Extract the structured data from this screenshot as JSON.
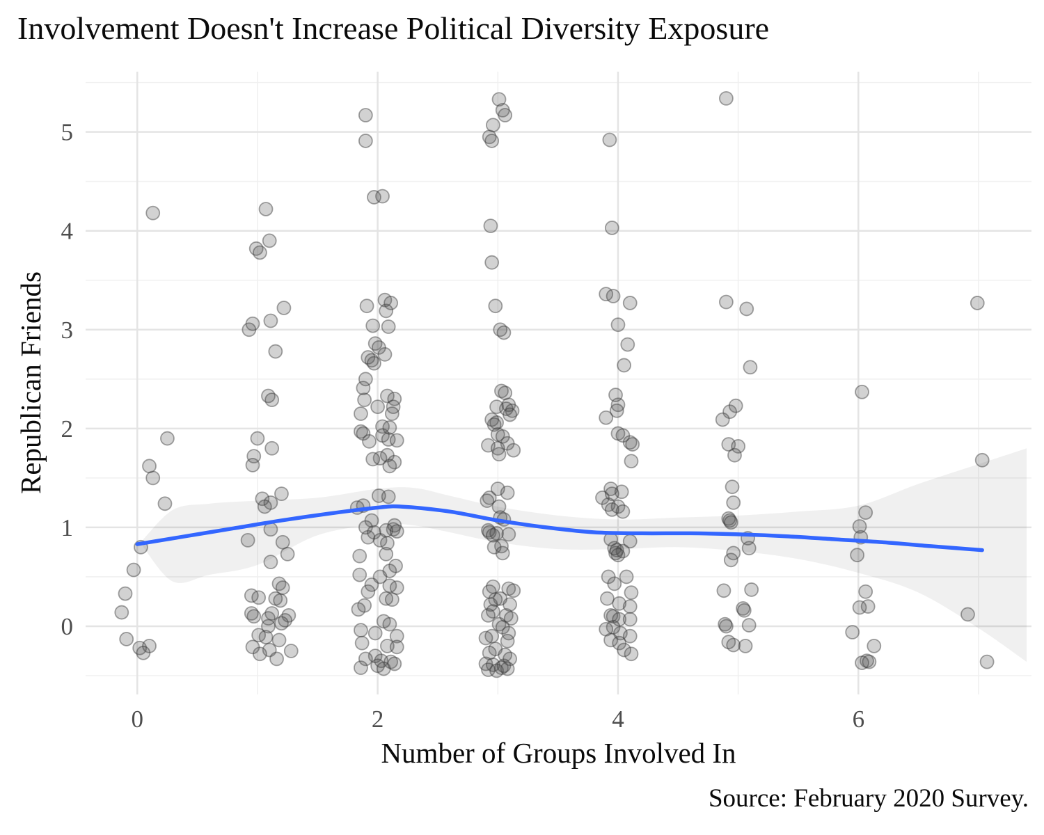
{
  "title": "Involvement Doesn't Increase Political Diversity Exposure",
  "caption": "Source: February 2020 Survey.",
  "chart_data": {
    "type": "scatter",
    "title": "Involvement Doesn't Increase Political Diversity Exposure",
    "xlabel": "Number of Groups Involved In",
    "ylabel": "Republican Friends",
    "caption": "Source: February 2020 Survey.",
    "xlim": [
      -0.43,
      7.44
    ],
    "ylim": [
      -0.69,
      5.61
    ],
    "x_ticks": [
      0,
      2,
      4,
      6
    ],
    "x_minor": [
      1,
      3,
      5,
      7
    ],
    "y_ticks": [
      0,
      1,
      2,
      3,
      4,
      5
    ],
    "y_minor": [
      -0.5,
      0.5,
      1.5,
      2.5,
      3.5,
      4.5,
      5.5
    ],
    "grid": true,
    "legend": "none",
    "colors": {
      "smooth_line": "#3366FF",
      "band": "rgba(0,0,0,0.06)",
      "point_fill": "rgba(75,75,75,0.25)",
      "point_stroke": "rgba(55,55,55,0.45)",
      "grid_major": "#E4E4E4",
      "grid_minor": "#F0F0F0",
      "tick_label": "#4D4D4D"
    },
    "smooth_line_points": [
      [
        0.0,
        0.83
      ],
      [
        0.4,
        0.91
      ],
      [
        0.8,
        0.99
      ],
      [
        1.2,
        1.07
      ],
      [
        1.6,
        1.14
      ],
      [
        2.0,
        1.2
      ],
      [
        2.2,
        1.21
      ],
      [
        2.6,
        1.16
      ],
      [
        3.0,
        1.07
      ],
      [
        3.4,
        1.0
      ],
      [
        3.8,
        0.95
      ],
      [
        4.2,
        0.94
      ],
      [
        4.6,
        0.94
      ],
      [
        5.0,
        0.93
      ],
      [
        5.4,
        0.91
      ],
      [
        5.8,
        0.88
      ],
      [
        6.2,
        0.85
      ],
      [
        6.6,
        0.81
      ],
      [
        7.03,
        0.77
      ]
    ],
    "confidence_band": [
      [
        0.05,
        0.8,
        0.88
      ],
      [
        0.3,
        0.45,
        1.18
      ],
      [
        0.6,
        0.52,
        1.24
      ],
      [
        1.0,
        0.62,
        1.27
      ],
      [
        1.5,
        0.92,
        1.3
      ],
      [
        2.0,
        1.03,
        1.39
      ],
      [
        2.3,
        1.02,
        1.4
      ],
      [
        2.6,
        0.95,
        1.32
      ],
      [
        3.0,
        0.85,
        1.21
      ],
      [
        3.5,
        0.78,
        1.12
      ],
      [
        4.0,
        0.78,
        1.08
      ],
      [
        4.5,
        0.8,
        1.1
      ],
      [
        5.0,
        0.76,
        1.12
      ],
      [
        5.5,
        0.68,
        1.16
      ],
      [
        6.0,
        0.54,
        1.22
      ],
      [
        6.5,
        0.34,
        1.44
      ],
      [
        7.0,
        -0.02,
        1.64
      ],
      [
        7.4,
        -0.36,
        1.8
      ]
    ],
    "points": [
      [
        0.13,
        4.18
      ],
      [
        0.25,
        1.9
      ],
      [
        0.1,
        1.62
      ],
      [
        0.13,
        1.5
      ],
      [
        0.23,
        1.24
      ],
      [
        0.03,
        0.8
      ],
      [
        -0.03,
        0.57
      ],
      [
        -0.1,
        0.33
      ],
      [
        -0.13,
        0.14
      ],
      [
        -0.09,
        -0.13
      ],
      [
        0.02,
        -0.22
      ],
      [
        0.1,
        -0.2
      ],
      [
        0.05,
        -0.27
      ],
      [
        1.07,
        4.22
      ],
      [
        1.1,
        3.9
      ],
      [
        0.99,
        3.82
      ],
      [
        1.02,
        3.78
      ],
      [
        1.22,
        3.22
      ],
      [
        1.11,
        3.09
      ],
      [
        0.96,
        3.06
      ],
      [
        0.93,
        3.0
      ],
      [
        1.15,
        2.78
      ],
      [
        1.09,
        2.33
      ],
      [
        1.12,
        2.29
      ],
      [
        1.0,
        1.9
      ],
      [
        1.12,
        1.8
      ],
      [
        0.97,
        1.72
      ],
      [
        0.96,
        1.63
      ],
      [
        1.2,
        1.34
      ],
      [
        1.04,
        1.29
      ],
      [
        1.11,
        1.25
      ],
      [
        1.06,
        1.21
      ],
      [
        1.11,
        0.98
      ],
      [
        0.92,
        0.87
      ],
      [
        1.21,
        0.85
      ],
      [
        1.25,
        0.73
      ],
      [
        1.11,
        0.65
      ],
      [
        1.18,
        0.43
      ],
      [
        1.21,
        0.39
      ],
      [
        0.95,
        0.31
      ],
      [
        1.01,
        0.29
      ],
      [
        1.15,
        0.28
      ],
      [
        1.19,
        0.26
      ],
      [
        0.95,
        0.13
      ],
      [
        1.12,
        0.13
      ],
      [
        1.26,
        0.11
      ],
      [
        0.97,
        0.1
      ],
      [
        1.09,
        0.08
      ],
      [
        1.23,
        0.06
      ],
      [
        1.2,
        0.03
      ],
      [
        1.09,
        0.0
      ],
      [
        1.01,
        -0.09
      ],
      [
        1.07,
        -0.11
      ],
      [
        1.18,
        -0.14
      ],
      [
        0.96,
        -0.21
      ],
      [
        1.1,
        -0.24
      ],
      [
        1.28,
        -0.25
      ],
      [
        1.02,
        -0.28
      ],
      [
        1.16,
        -0.33
      ],
      [
        1.9,
        5.17
      ],
      [
        1.9,
        4.91
      ],
      [
        1.97,
        4.34
      ],
      [
        2.04,
        4.35
      ],
      [
        1.91,
        3.24
      ],
      [
        2.06,
        3.3
      ],
      [
        2.11,
        3.27
      ],
      [
        2.07,
        3.19
      ],
      [
        1.96,
        3.04
      ],
      [
        2.09,
        3.03
      ],
      [
        1.98,
        2.86
      ],
      [
        2.01,
        2.82
      ],
      [
        2.06,
        2.75
      ],
      [
        1.92,
        2.72
      ],
      [
        1.95,
        2.69
      ],
      [
        1.97,
        2.66
      ],
      [
        1.9,
        2.5
      ],
      [
        1.88,
        2.41
      ],
      [
        2.08,
        2.33
      ],
      [
        2.14,
        2.3
      ],
      [
        1.89,
        2.29
      ],
      [
        2.0,
        2.22
      ],
      [
        2.13,
        2.22
      ],
      [
        1.86,
        2.15
      ],
      [
        2.12,
        2.15
      ],
      [
        2.04,
        2.02
      ],
      [
        2.1,
        2.01
      ],
      [
        1.86,
        1.97
      ],
      [
        1.88,
        1.95
      ],
      [
        2.04,
        1.93
      ],
      [
        2.09,
        1.89
      ],
      [
        1.93,
        1.87
      ],
      [
        2.16,
        1.88
      ],
      [
        2.08,
        1.73
      ],
      [
        2.02,
        1.7
      ],
      [
        1.96,
        1.69
      ],
      [
        2.14,
        1.66
      ],
      [
        2.1,
        1.62
      ],
      [
        2.01,
        1.32
      ],
      [
        2.09,
        1.31
      ],
      [
        1.88,
        1.22
      ],
      [
        1.83,
        1.2
      ],
      [
        1.95,
        1.07
      ],
      [
        1.9,
        1.0
      ],
      [
        2.13,
        0.98
      ],
      [
        2.14,
        1.02
      ],
      [
        2.07,
        0.97
      ],
      [
        2.16,
        0.96
      ],
      [
        1.97,
        0.95
      ],
      [
        1.92,
        0.9
      ],
      [
        2.02,
        0.87
      ],
      [
        2.08,
        0.84
      ],
      [
        1.85,
        0.71
      ],
      [
        2.07,
        0.73
      ],
      [
        2.15,
        0.61
      ],
      [
        2.1,
        0.56
      ],
      [
        1.85,
        0.52
      ],
      [
        2.02,
        0.5
      ],
      [
        1.95,
        0.42
      ],
      [
        2.1,
        0.41
      ],
      [
        2.16,
        0.39
      ],
      [
        1.92,
        0.35
      ],
      [
        2.07,
        0.28
      ],
      [
        2.12,
        0.27
      ],
      [
        1.89,
        0.21
      ],
      [
        1.84,
        0.17
      ],
      [
        2.05,
        0.05
      ],
      [
        2.1,
        0.02
      ],
      [
        1.86,
        -0.04
      ],
      [
        1.98,
        -0.07
      ],
      [
        2.16,
        -0.1
      ],
      [
        1.87,
        -0.17
      ],
      [
        2.08,
        -0.2
      ],
      [
        2.16,
        -0.21
      ],
      [
        1.98,
        -0.3
      ],
      [
        2.03,
        -0.35
      ],
      [
        2.11,
        -0.36
      ],
      [
        1.9,
        -0.33
      ],
      [
        2.14,
        -0.38
      ],
      [
        2.0,
        -0.4
      ],
      [
        1.86,
        -0.42
      ],
      [
        2.05,
        -0.43
      ],
      [
        3.01,
        5.33
      ],
      [
        3.04,
        5.22
      ],
      [
        3.06,
        5.17
      ],
      [
        2.96,
        5.07
      ],
      [
        2.93,
        4.95
      ],
      [
        2.95,
        4.91
      ],
      [
        2.94,
        4.05
      ],
      [
        2.95,
        3.68
      ],
      [
        2.98,
        3.24
      ],
      [
        3.02,
        3.0
      ],
      [
        3.05,
        2.97
      ],
      [
        3.03,
        2.38
      ],
      [
        3.06,
        2.36
      ],
      [
        3.09,
        2.24
      ],
      [
        2.99,
        2.22
      ],
      [
        3.07,
        2.2
      ],
      [
        3.12,
        2.18
      ],
      [
        3.1,
        2.14
      ],
      [
        2.95,
        2.09
      ],
      [
        2.99,
        2.06
      ],
      [
        2.97,
        2.04
      ],
      [
        3.0,
        1.94
      ],
      [
        3.04,
        1.92
      ],
      [
        3.08,
        1.85
      ],
      [
        2.92,
        1.83
      ],
      [
        3.0,
        1.8
      ],
      [
        3.13,
        1.78
      ],
      [
        3.01,
        1.74
      ],
      [
        3.0,
        1.39
      ],
      [
        3.08,
        1.35
      ],
      [
        2.93,
        1.3
      ],
      [
        2.91,
        1.27
      ],
      [
        3.01,
        1.21
      ],
      [
        3.02,
        1.1
      ],
      [
        3.05,
        1.08
      ],
      [
        2.92,
        0.97
      ],
      [
        2.93,
        0.95
      ],
      [
        2.99,
        0.94
      ],
      [
        3.09,
        0.93
      ],
      [
        2.96,
        0.92
      ],
      [
        3.03,
        0.81
      ],
      [
        2.97,
        0.8
      ],
      [
        3.04,
        0.74
      ],
      [
        2.96,
        0.4
      ],
      [
        3.09,
        0.38
      ],
      [
        2.93,
        0.35
      ],
      [
        3.13,
        0.36
      ],
      [
        3.02,
        0.28
      ],
      [
        2.98,
        0.27
      ],
      [
        2.94,
        0.22
      ],
      [
        3.1,
        0.22
      ],
      [
        2.96,
        0.15
      ],
      [
        2.92,
        0.11
      ],
      [
        3.07,
        0.11
      ],
      [
        3.11,
        0.08
      ],
      [
        3.01,
        0.02
      ],
      [
        3.04,
        -0.01
      ],
      [
        3.09,
        -0.07
      ],
      [
        2.95,
        -0.1
      ],
      [
        2.9,
        -0.12
      ],
      [
        3.08,
        -0.15
      ],
      [
        2.98,
        -0.23
      ],
      [
        2.93,
        -0.27
      ],
      [
        3.06,
        -0.29
      ],
      [
        3.1,
        -0.33
      ],
      [
        2.9,
        -0.38
      ],
      [
        2.96,
        -0.39
      ],
      [
        3.03,
        -0.42
      ],
      [
        3.08,
        -0.43
      ],
      [
        2.92,
        -0.44
      ],
      [
        2.99,
        -0.45
      ],
      [
        3.05,
        -0.4
      ],
      [
        3.93,
        4.92
      ],
      [
        3.95,
        4.03
      ],
      [
        3.9,
        3.36
      ],
      [
        3.96,
        3.34
      ],
      [
        4.1,
        3.27
      ],
      [
        4.0,
        3.05
      ],
      [
        4.08,
        2.85
      ],
      [
        4.05,
        2.64
      ],
      [
        3.98,
        2.34
      ],
      [
        4.0,
        2.24
      ],
      [
        3.99,
        2.18
      ],
      [
        3.9,
        2.11
      ],
      [
        4.0,
        1.95
      ],
      [
        4.04,
        1.93
      ],
      [
        4.1,
        1.86
      ],
      [
        4.12,
        1.84
      ],
      [
        4.11,
        1.67
      ],
      [
        3.94,
        1.39
      ],
      [
        4.03,
        1.36
      ],
      [
        3.95,
        1.34
      ],
      [
        3.87,
        1.3
      ],
      [
        3.92,
        1.23
      ],
      [
        4.0,
        1.21
      ],
      [
        3.95,
        1.18
      ],
      [
        4.04,
        1.16
      ],
      [
        3.94,
        0.88
      ],
      [
        4.1,
        0.86
      ],
      [
        3.97,
        0.79
      ],
      [
        3.99,
        0.77
      ],
      [
        4.04,
        0.76
      ],
      [
        3.98,
        0.74
      ],
      [
        4.0,
        0.72
      ],
      [
        3.92,
        0.5
      ],
      [
        4.07,
        0.5
      ],
      [
        3.97,
        0.43
      ],
      [
        4.11,
        0.34
      ],
      [
        3.91,
        0.28
      ],
      [
        4.01,
        0.23
      ],
      [
        4.1,
        0.2
      ],
      [
        3.94,
        0.11
      ],
      [
        3.96,
        0.1
      ],
      [
        4.01,
        0.07
      ],
      [
        4.1,
        0.07
      ],
      [
        3.96,
        -0.01
      ],
      [
        3.9,
        -0.03
      ],
      [
        4.02,
        -0.07
      ],
      [
        4.1,
        -0.1
      ],
      [
        3.94,
        -0.14
      ],
      [
        4.01,
        -0.17
      ],
      [
        4.05,
        -0.24
      ],
      [
        4.11,
        -0.28
      ],
      [
        4.9,
        5.34
      ],
      [
        4.9,
        3.28
      ],
      [
        5.07,
        3.21
      ],
      [
        5.1,
        2.62
      ],
      [
        4.98,
        2.23
      ],
      [
        4.93,
        2.17
      ],
      [
        4.87,
        2.09
      ],
      [
        4.92,
        1.84
      ],
      [
        5.0,
        1.82
      ],
      [
        4.97,
        1.73
      ],
      [
        4.95,
        1.41
      ],
      [
        4.96,
        1.25
      ],
      [
        4.92,
        1.09
      ],
      [
        4.93,
        1.07
      ],
      [
        4.94,
        1.05
      ],
      [
        5.08,
        0.89
      ],
      [
        5.09,
        0.79
      ],
      [
        4.96,
        0.74
      ],
      [
        4.94,
        0.67
      ],
      [
        4.88,
        0.36
      ],
      [
        5.11,
        0.37
      ],
      [
        5.04,
        0.18
      ],
      [
        5.05,
        0.16
      ],
      [
        4.89,
        0.02
      ],
      [
        4.9,
        0.0
      ],
      [
        5.09,
        0.01
      ],
      [
        4.92,
        -0.16
      ],
      [
        4.96,
        -0.19
      ],
      [
        5.06,
        -0.2
      ],
      [
        6.03,
        2.37
      ],
      [
        6.06,
        1.15
      ],
      [
        6.01,
        1.01
      ],
      [
        6.02,
        0.9
      ],
      [
        5.99,
        0.72
      ],
      [
        6.06,
        0.35
      ],
      [
        6.01,
        0.19
      ],
      [
        6.08,
        0.2
      ],
      [
        5.95,
        -0.06
      ],
      [
        6.13,
        -0.2
      ],
      [
        6.07,
        -0.35
      ],
      [
        6.03,
        -0.37
      ],
      [
        6.09,
        -0.36
      ],
      [
        6.99,
        3.27
      ],
      [
        7.03,
        1.68
      ],
      [
        6.91,
        0.12
      ],
      [
        7.07,
        -0.36
      ]
    ]
  }
}
